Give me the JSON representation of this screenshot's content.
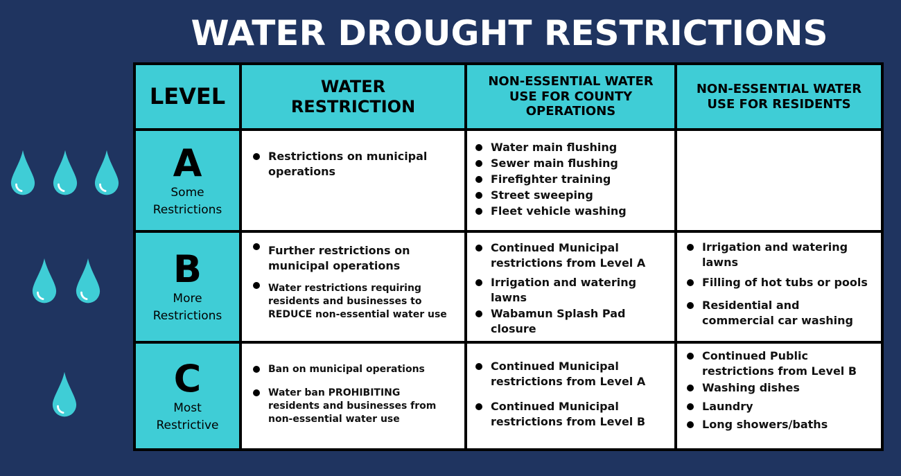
{
  "title": "WATER DROUGHT RESTRICTIONS",
  "colors": {
    "background": "#1f3460",
    "accent": "#3fcdd6",
    "drop": "#3fcdd6"
  },
  "headers": {
    "level": "LEVEL",
    "water_restriction_line1": "WATER",
    "water_restriction_line2": "RESTRICTION",
    "county_ops_line1": "NON-ESSENTIAL WATER",
    "county_ops_line2": "USE FOR COUNTY",
    "county_ops_line3": "OPERATIONS",
    "residents_line1": "NON-ESSENTIAL WATER",
    "residents_line2": "USE FOR RESIDENTS"
  },
  "rows": [
    {
      "letter": "A",
      "sub_line1": "Some",
      "sub_line2": "Restrictions",
      "water_restriction": [
        "Restrictions on municipal operations"
      ],
      "county_operations": [
        "Water main flushing",
        "Sewer main flushing",
        "Firefighter training",
        "Street sweeping",
        "Fleet vehicle washing"
      ],
      "residents": []
    },
    {
      "letter": "B",
      "sub_line1": "More",
      "sub_line2": "Restrictions",
      "water_restriction": [
        "Further restrictions on municipal operations",
        "Water restrictions requiring residents and businesses to REDUCE non-essential water use"
      ],
      "county_operations": [
        "Continued Municipal restrictions from Level A",
        "Irrigation and watering lawns",
        "Wabamun Splash Pad closure"
      ],
      "residents": [
        "Irrigation and watering lawns",
        "Filling of hot tubs or pools",
        "Residential and commercial car washing"
      ]
    },
    {
      "letter": "C",
      "sub_line1": "Most",
      "sub_line2": "Restrictive",
      "water_restriction": [
        "Ban on municipal operations",
        "Water ban PROHIBITING residents and businesses from non-essential water use"
      ],
      "county_operations": [
        "Continued Municipal restrictions from Level A",
        "Continued Municipal restrictions from Level B"
      ],
      "residents": [
        "Continued Public restrictions from Level B",
        "Washing dishes",
        "Laundry",
        "Long showers/baths"
      ]
    }
  ]
}
